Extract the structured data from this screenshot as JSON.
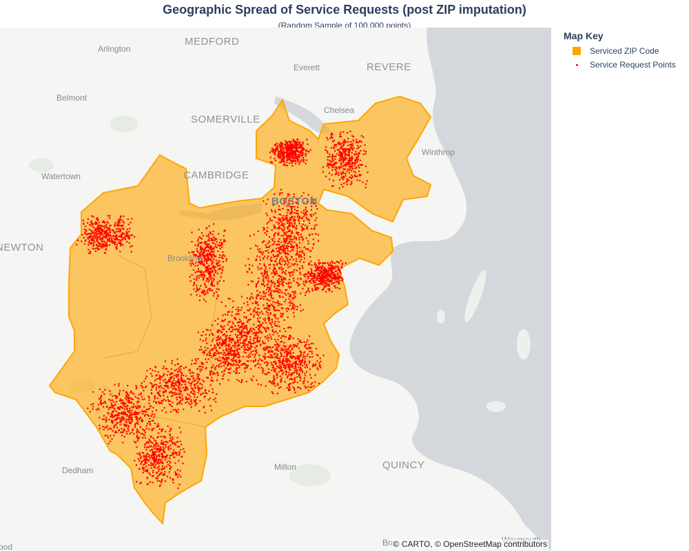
{
  "chart": {
    "title": "Geographic Spread of Service Requests (post ZIP imputation)",
    "subtitle": "(Random Sample of 100,000 points)"
  },
  "legend": {
    "title": "Map Key",
    "items": [
      {
        "label": "Serviced ZIP Code",
        "color": "#FFA500",
        "symbol": "square"
      },
      {
        "label": "Service Request Points",
        "color": "#FF0000",
        "symbol": "dot"
      }
    ]
  },
  "map": {
    "basemap": "carto-positron",
    "water_color": "#d4d8dc",
    "land_color": "#f5f5f3",
    "attribution": "© CARTO, © OpenStreetMap contributors",
    "places": {
      "medford": "MEDFORD",
      "arlington": "Arlington",
      "everett": "Everett",
      "revere": "REVERE",
      "belmont": "Belmont",
      "chelsea": "Chelsea",
      "somerville": "SOMERVILLE",
      "winthrop": "Winthrop",
      "watertown": "Watertown",
      "cambridge": "CAMBRIDGE",
      "boston": "BOSTON",
      "newton": "NEWTON",
      "brookline": "Brookline",
      "dedham": "Dedham",
      "milton": "Milton",
      "quincy": "QUINCY",
      "braintree": "Bra",
      "weymouth": "Weymouth",
      "needham": "ood"
    }
  }
}
